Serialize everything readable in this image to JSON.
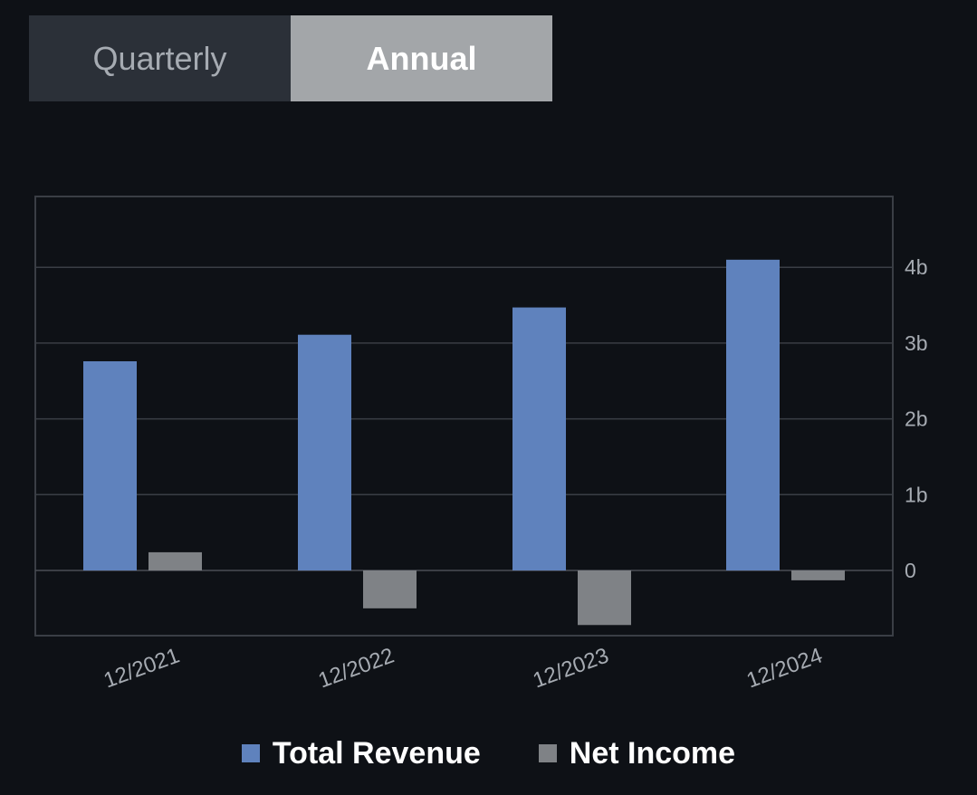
{
  "toggle": {
    "options": [
      "Quarterly",
      "Annual"
    ],
    "selected": "Annual"
  },
  "colors": {
    "background": "#0e1116",
    "total_revenue": "#5f82bd",
    "net_income": "#7f8286",
    "grid": "#3a3e45",
    "axis_text": "#a6abb2"
  },
  "legend": {
    "total_revenue": "Total Revenue",
    "net_income": "Net Income"
  },
  "chart_data": {
    "type": "bar",
    "categories": [
      "12/2021",
      "12/2022",
      "12/2023",
      "12/2024"
    ],
    "series": [
      {
        "name": "Total Revenue",
        "values": [
          2.76,
          3.11,
          3.47,
          4.1
        ]
      },
      {
        "name": "Net Income",
        "values": [
          0.24,
          -0.5,
          -0.72,
          -0.13
        ]
      }
    ],
    "y_unit": "billions",
    "ylim": [
      -0.85,
      4.95
    ],
    "yticks": [
      0,
      1,
      2,
      3,
      4
    ],
    "ytick_labels": [
      "0",
      "1b",
      "2b",
      "3b",
      "4b"
    ],
    "y_axis_side": "right",
    "grid": true,
    "legend_position": "bottom"
  }
}
